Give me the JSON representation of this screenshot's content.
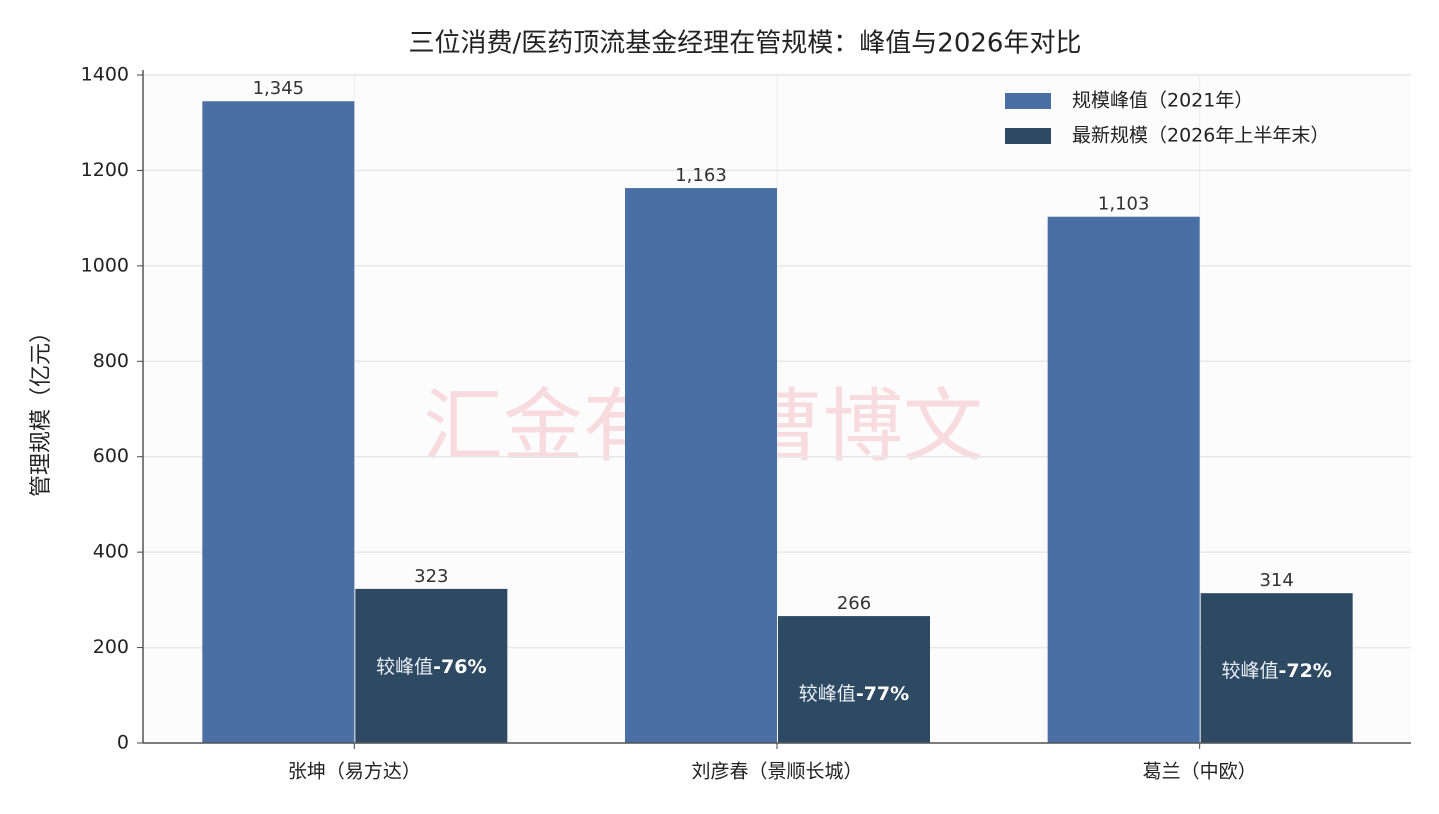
{
  "chart_data": {
    "type": "bar",
    "title": "三位消费/医药顶流基金经理在管规模：峰值与2026年对比",
    "y_label": "管理规模（亿元）",
    "watermark": "汇金有道曹博文",
    "categories": [
      "张坤（易方达）",
      "刘彦春（景顺长城）",
      "葛兰（中欧）"
    ],
    "series": [
      {
        "name": "规模峰值（2021年）",
        "color": "#4a6fa5",
        "values": [
          1345,
          1163,
          1103
        ],
        "value_labels": [
          "1,345",
          "1,163",
          "1,103"
        ]
      },
      {
        "name": "最新规模（2026年上半年末）",
        "color": "#2e4a63",
        "values": [
          323,
          266,
          314
        ]
      }
    ],
    "annotations": [
      {
        "label": "较峰值",
        "change": "-76%"
      },
      {
        "label": "较峰值",
        "change": "-77%"
      },
      {
        "label": "较峰值",
        "change": "-72%"
      }
    ],
    "ylim": [
      0,
      1400
    ],
    "yticks": [
      0,
      200,
      400,
      600,
      800,
      1000,
      1200,
      1400
    ],
    "grid": true,
    "legend": "upper right"
  }
}
